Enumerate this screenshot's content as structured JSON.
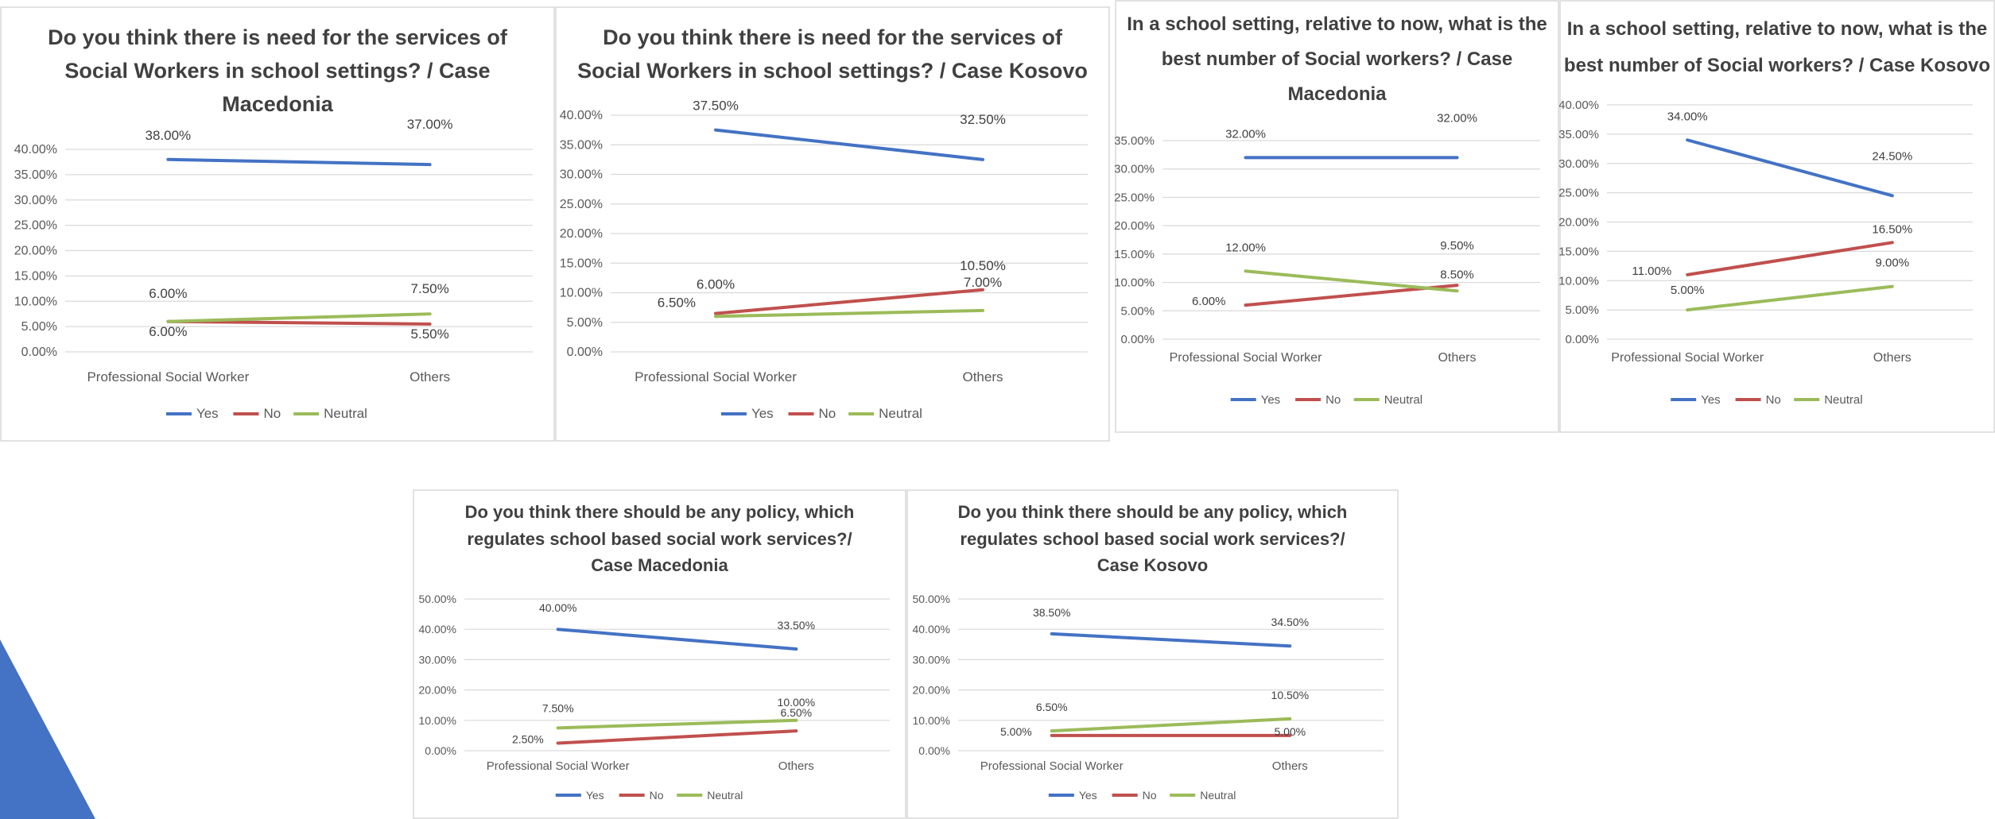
{
  "colors": {
    "Yes": "#4472C4",
    "No": "#C0504D",
    "Neutral": "#9BBB59"
  },
  "chart_data": [
    {
      "type": "line",
      "title": "Do you think there is need for the services of Social Workers in school settings? / Case Macedonia",
      "categories": [
        "Professional Social Worker",
        "Others"
      ],
      "yticks": [
        "0.00%",
        "5.00%",
        "10.00%",
        "15.00%",
        "20.00%",
        "25.00%",
        "30.00%",
        "35.00%",
        "40.00%"
      ],
      "ylim": [
        0,
        40
      ],
      "legend_position": "bottom",
      "grid": true,
      "series": [
        {
          "name": "Yes",
          "values": [
            38,
            37
          ],
          "labels": [
            "38.00%",
            "37.00%"
          ]
        },
        {
          "name": "No",
          "values": [
            6,
            5.5
          ],
          "labels": [
            "6.00%",
            "5.50%"
          ]
        },
        {
          "name": "Neutral",
          "values": [
            6,
            7.5
          ],
          "labels": [
            "6.00%",
            "7.50%"
          ]
        }
      ]
    },
    {
      "type": "line",
      "title": "Do you think there is need for the services of Social Workers in school settings? / Case Kosovo",
      "categories": [
        "Professional Social Worker",
        "Others"
      ],
      "yticks": [
        "0.00%",
        "5.00%",
        "10.00%",
        "15.00%",
        "20.00%",
        "25.00%",
        "30.00%",
        "35.00%",
        "40.00%"
      ],
      "ylim": [
        0,
        40
      ],
      "legend_position": "bottom",
      "grid": true,
      "series": [
        {
          "name": "Yes",
          "values": [
            37.5,
            32.5
          ],
          "labels": [
            "37.50%",
            "32.50%"
          ]
        },
        {
          "name": "No",
          "values": [
            6.5,
            10.5
          ],
          "labels": [
            "6.50%",
            "10.50%"
          ]
        },
        {
          "name": "Neutral",
          "values": [
            6,
            7
          ],
          "labels": [
            "6.00%",
            "7.00%"
          ]
        }
      ]
    },
    {
      "type": "line",
      "title": "In a school setting, relative to now, what is the best number of Social workers? / Case Macedonia",
      "categories": [
        "Professional Social Worker",
        "Others"
      ],
      "yticks": [
        "0.00%",
        "5.00%",
        "10.00%",
        "15.00%",
        "20.00%",
        "25.00%",
        "30.00%",
        "35.00%"
      ],
      "ylim": [
        0,
        35
      ],
      "legend_position": "bottom",
      "grid": true,
      "series": [
        {
          "name": "Yes",
          "values": [
            32,
            32
          ],
          "labels": [
            "32.00%",
            "32.00%"
          ]
        },
        {
          "name": "No",
          "values": [
            6,
            9.5
          ],
          "labels": [
            "6.00%",
            "9.50%"
          ]
        },
        {
          "name": "Neutral",
          "values": [
            12,
            8.5
          ],
          "labels": [
            "12.00%",
            "8.50%"
          ]
        }
      ]
    },
    {
      "type": "line",
      "title": "In a school setting, relative to now, what is the best number of Social workers? / Case Kosovo",
      "categories": [
        "Professional Social Worker",
        "Others"
      ],
      "yticks": [
        "0.00%",
        "5.00%",
        "10.00%",
        "15.00%",
        "20.00%",
        "25.00%",
        "30.00%",
        "35.00%",
        "40.00%"
      ],
      "ylim": [
        0,
        40
      ],
      "legend_position": "bottom",
      "grid": true,
      "series": [
        {
          "name": "Yes",
          "values": [
            34,
            24.5
          ],
          "labels": [
            "34.00%",
            "24.50%"
          ]
        },
        {
          "name": "No",
          "values": [
            11,
            16.5
          ],
          "labels": [
            "11.00%",
            "16.50%"
          ]
        },
        {
          "name": "Neutral",
          "values": [
            5,
            9
          ],
          "labels": [
            "5.00%",
            "9.00%"
          ]
        }
      ]
    },
    {
      "type": "line",
      "title": "Do you think there should be any policy, which regulates school based social work services?/ Case Macedonia",
      "categories": [
        "Professional Social Worker",
        "Others"
      ],
      "yticks": [
        "0.00%",
        "10.00%",
        "20.00%",
        "30.00%",
        "40.00%",
        "50.00%"
      ],
      "ylim": [
        0,
        50
      ],
      "legend_position": "bottom",
      "grid": true,
      "series": [
        {
          "name": "Yes",
          "values": [
            40,
            33.5
          ],
          "labels": [
            "40.00%",
            "33.50%"
          ]
        },
        {
          "name": "No",
          "values": [
            2.5,
            6.5
          ],
          "labels": [
            "2.50%",
            "6.50%"
          ]
        },
        {
          "name": "Neutral",
          "values": [
            7.5,
            10
          ],
          "labels": [
            "7.50%",
            "10.00%"
          ]
        }
      ]
    },
    {
      "type": "line",
      "title": "Do you think there should be any policy, which regulates school based social work services?/ Case Kosovo",
      "categories": [
        "Professional Social Worker",
        "Others"
      ],
      "yticks": [
        "0.00%",
        "10.00%",
        "20.00%",
        "30.00%",
        "40.00%",
        "50.00%"
      ],
      "ylim": [
        0,
        50
      ],
      "legend_position": "bottom",
      "grid": true,
      "series": [
        {
          "name": "Yes",
          "values": [
            38.5,
            34.5
          ],
          "labels": [
            "38.50%",
            "34.50%"
          ]
        },
        {
          "name": "No",
          "values": [
            5,
            5
          ],
          "labels": [
            "5.00%",
            "5.00%"
          ]
        },
        {
          "name": "Neutral",
          "values": [
            6.5,
            10.5
          ],
          "labels": [
            "6.50%",
            "10.50%"
          ]
        }
      ]
    }
  ]
}
